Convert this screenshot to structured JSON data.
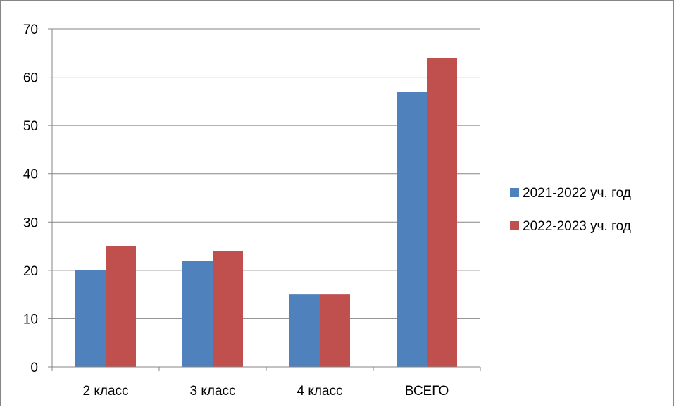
{
  "chart_data": {
    "type": "bar",
    "categories": [
      "2 класс",
      "3 класс",
      "4 класс",
      "ВСЕГО"
    ],
    "series": [
      {
        "name": "2021-2022 уч. год",
        "values": [
          20,
          22,
          15,
          57
        ],
        "color": "#4F81BD"
      },
      {
        "name": "2022-2023 уч. год",
        "values": [
          25,
          24,
          15,
          64
        ],
        "color": "#C0504D"
      }
    ],
    "ylim": [
      0,
      70
    ],
    "yticks": [
      0,
      10,
      20,
      30,
      40,
      50,
      60,
      70
    ],
    "grid": true,
    "legend_position": "right",
    "title": "",
    "xlabel": "",
    "ylabel": ""
  }
}
